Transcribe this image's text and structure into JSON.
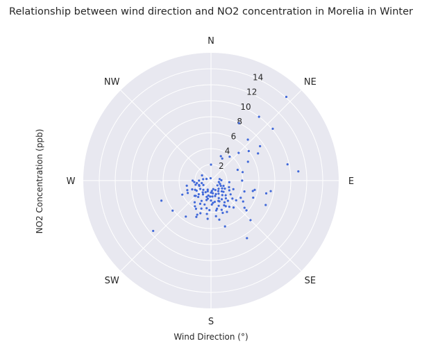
{
  "chart_data": {
    "type": "scatter",
    "projection": "polar",
    "title": "Relationship between wind direction and NO2 concentration in Morelia in Winter",
    "xlabel": "Wind Direction (°)",
    "ylabel": "NO2 Concentration (ppb)",
    "direction_labels": [
      "N",
      "NE",
      "E",
      "SE",
      "S",
      "SW",
      "W",
      "NW"
    ],
    "r_ticks": [
      2,
      4,
      6,
      8,
      10,
      12,
      14
    ],
    "r_max": 16,
    "grid": true,
    "background_color": "#e8e8f0",
    "point_color": "#4169d9",
    "series": [
      {
        "points": [
          [
            42,
            14.1
          ],
          [
            37,
            10.0
          ],
          [
            50,
            10.1
          ],
          [
            55,
            7.5
          ],
          [
            42,
            6.9
          ],
          [
            60,
            6.8
          ],
          [
            26,
            8.0
          ],
          [
            22,
            3.3
          ],
          [
            27,
            3.1
          ],
          [
            38,
            3.8
          ],
          [
            45,
            4.9
          ],
          [
            52,
            6.0
          ],
          [
            0,
            2.0
          ],
          [
            78,
            9.8
          ],
          [
            84,
            11.0
          ],
          [
            63,
            5.2
          ],
          [
            68,
            3.6
          ],
          [
            75,
            4.1
          ],
          [
            90,
            3.9
          ],
          [
            100,
            7.6
          ],
          [
            104,
            5.4
          ],
          [
            103,
            7.1
          ],
          [
            102,
            5.6
          ],
          [
            112,
            5.7
          ],
          [
            114,
            7.5
          ],
          [
            108,
            4.4
          ],
          [
            111,
            3.0
          ],
          [
            120,
            4.3
          ],
          [
            123,
            4.8
          ],
          [
            129,
            5.4
          ],
          [
            130,
            5.8
          ],
          [
            135,
            7.0
          ],
          [
            148,
            8.5
          ],
          [
            132,
            2.1
          ],
          [
            140,
            2.9
          ],
          [
            152,
            3.5
          ],
          [
            140,
            4.4
          ],
          [
            145,
            4.0
          ],
          [
            150,
            2.7
          ],
          [
            153,
            4.4
          ],
          [
            160,
            3.9
          ],
          [
            160,
            4.3
          ],
          [
            170,
            3.8
          ],
          [
            172,
            4.5
          ],
          [
            168,
            5.0
          ],
          [
            175,
            2.8
          ],
          [
            158,
            2.8
          ],
          [
            163,
            3.3
          ],
          [
            148,
            3.2
          ],
          [
            156,
            2.4
          ],
          [
            165,
            2.0
          ],
          [
            172,
            1.6
          ],
          [
            175,
            2.0
          ],
          [
            170,
            2.7
          ],
          [
            180,
            1.5
          ],
          [
            178,
            3.0
          ],
          [
            183,
            3.7
          ],
          [
            185,
            4.8
          ],
          [
            187,
            4.2
          ],
          [
            189,
            3.5
          ],
          [
            190,
            1.9
          ],
          [
            193,
            2.5
          ],
          [
            195,
            3.1
          ],
          [
            199,
            3.7
          ],
          [
            202,
            4.6
          ],
          [
            205,
            3.2
          ],
          [
            208,
            4.0
          ],
          [
            212,
            3.8
          ],
          [
            225,
            2.7
          ],
          [
            218,
            2.6
          ],
          [
            222,
            2.3
          ],
          [
            235,
            2.2
          ],
          [
            240,
            2.3
          ],
          [
            245,
            2.6
          ],
          [
            250,
            1.6
          ],
          [
            246,
            1.6
          ],
          [
            255,
            1.2
          ],
          [
            258,
            3.1
          ],
          [
            248,
            3.2
          ],
          [
            242,
            3.3
          ],
          [
            244,
            4.0
          ],
          [
            248,
            6.7
          ],
          [
            232,
            6.1
          ],
          [
            229,
            9.6
          ],
          [
            215,
            5.5
          ],
          [
            202,
            4.9
          ],
          [
            198,
            4.3
          ],
          [
            217,
            3.4
          ],
          [
            227,
            2.8
          ],
          [
            210,
            2.0
          ],
          [
            197,
            1.4
          ],
          [
            205,
            1.6
          ],
          [
            215,
            1.8
          ],
          [
            195,
            2.1
          ],
          [
            183,
            2.0
          ],
          [
            190,
            2.3
          ],
          [
            175,
            1.3
          ],
          [
            165,
            1.1
          ],
          [
            155,
            1.3
          ],
          [
            145,
            1.6
          ],
          [
            137,
            1.4
          ],
          [
            127,
            1.0
          ],
          [
            125,
            1.7
          ],
          [
            118,
            1.4
          ],
          [
            113,
            1.7
          ],
          [
            110,
            2.4
          ],
          [
            135,
            1.9
          ],
          [
            120,
            2.0
          ],
          [
            142,
            2.3
          ],
          [
            160,
            1.8
          ],
          [
            150,
            1.9
          ],
          [
            200,
            1.2
          ],
          [
            220,
            1.5
          ],
          [
            232,
            1.7
          ],
          [
            240,
            1.1
          ],
          [
            255,
            2.0
          ],
          [
            265,
            2.1
          ],
          [
            270,
            2.3
          ],
          [
            280,
            1.0
          ],
          [
            290,
            0.6
          ],
          [
            350,
            0.3
          ],
          [
            270,
            1.5
          ],
          [
            260,
            1.8
          ],
          [
            300,
            1.3
          ],
          [
            95,
            2.3
          ],
          [
            88,
            1.3
          ],
          [
            80,
            1.1
          ],
          [
            100,
            1.0
          ],
          [
            110,
            1.2
          ],
          [
            160,
            2.7
          ],
          [
            180,
            2.5
          ],
          [
            205,
            2.8
          ],
          [
            140,
            3.3
          ],
          [
            130,
            3.5
          ],
          [
            125,
            3.0
          ],
          [
            118,
            2.6
          ],
          [
            128,
            4.0
          ],
          [
            163,
            6.0
          ],
          [
            168,
            3.6
          ],
          [
            135,
            2.6
          ],
          [
            150,
            3.7
          ]
        ]
      }
    ]
  }
}
